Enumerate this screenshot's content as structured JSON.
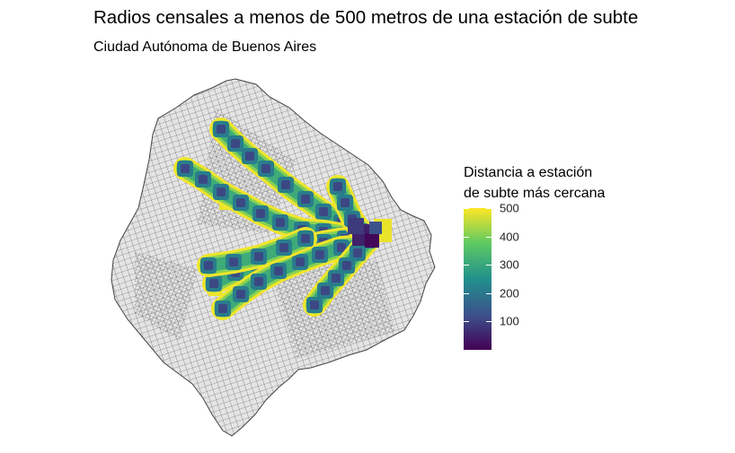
{
  "title": "Radios censales a menos de 500 metros de una estación de subte",
  "subtitle": "Ciudad Autónoma de Buenos Aires",
  "legend": {
    "title_line1": "Distancia a estación",
    "title_line2": "de subte más cercana",
    "min": 0,
    "max": 500,
    "ticks": [
      "500",
      "400",
      "300",
      "200",
      "100"
    ],
    "tick_values": [
      500,
      400,
      300,
      200,
      100
    ],
    "palette": "viridis",
    "colors": [
      "#440154",
      "#3b528b",
      "#21908c",
      "#5dc963",
      "#fde725"
    ]
  },
  "map": {
    "region": "Ciudad Autónoma de Buenos Aires",
    "base_fill": "#e6e6e6",
    "border_color": "#4d4d4d"
  }
}
